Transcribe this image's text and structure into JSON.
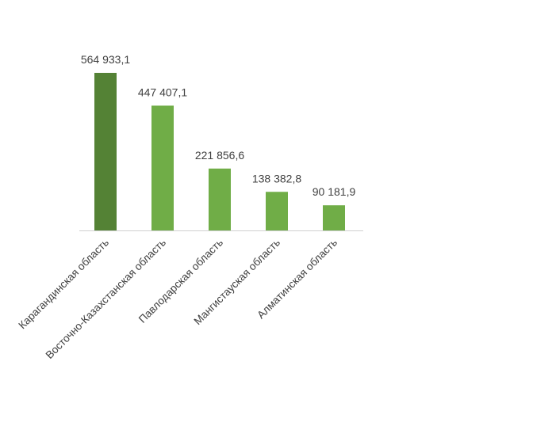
{
  "chart_data": {
    "type": "bar",
    "title": "",
    "xlabel": "",
    "ylabel": "",
    "ylim": [
      0,
      564933.1
    ],
    "grid": false,
    "legend": "none",
    "categories": [
      "Карагандинская область",
      "Восточно-Казахстанская область",
      "Павлодарская область",
      "Мангистауская область",
      "Алматинская область"
    ],
    "values": [
      564933.1,
      447407.1,
      221856.6,
      138382.8,
      90181.9
    ],
    "value_labels": [
      "564 933,1",
      "447 407,1",
      "221 856,6",
      "138 382,8",
      "90 181,9"
    ],
    "bar_colors": [
      "#548235",
      "#70ad47",
      "#70ad47",
      "#70ad47",
      "#70ad47"
    ],
    "axis_color": "#d0d0d0",
    "text_color": "#404040"
  }
}
